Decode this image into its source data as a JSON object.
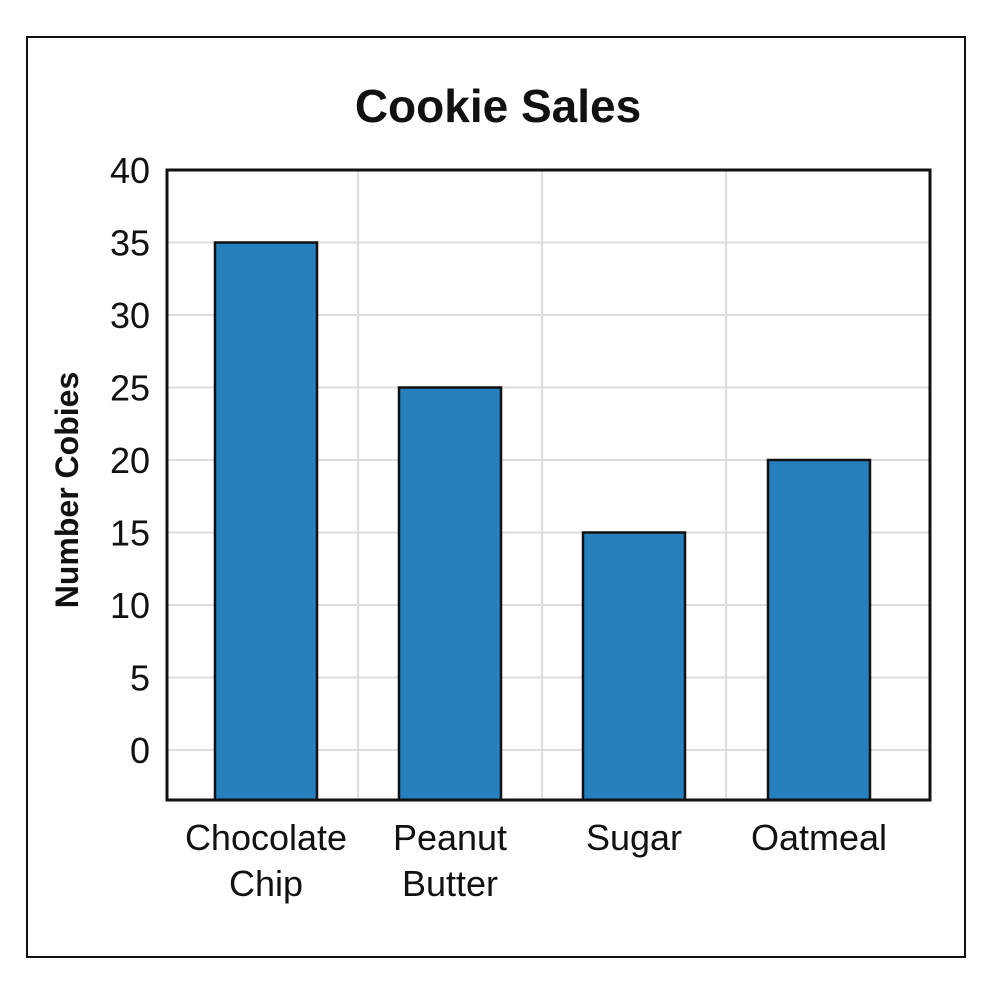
{
  "chart_data": {
    "type": "bar",
    "title": "Cookie Sales",
    "xlabel": "",
    "ylabel": "Number Cobies",
    "categories": [
      [
        "Chocolate",
        "Chip"
      ],
      [
        "Peanut",
        "Butter"
      ],
      [
        "Sugar"
      ],
      [
        "Oatmeal"
      ]
    ],
    "values": [
      35,
      25,
      15,
      20
    ],
    "ylim": [
      0,
      40
    ],
    "yticks": [
      "0",
      "5",
      "10",
      "15",
      "20",
      "25",
      "30",
      "35",
      "40"
    ],
    "grid": true,
    "legend": "none",
    "bar_color": "#2680BD",
    "bar_edge_color": "#111111",
    "grid_color": "#DDDDDD"
  }
}
